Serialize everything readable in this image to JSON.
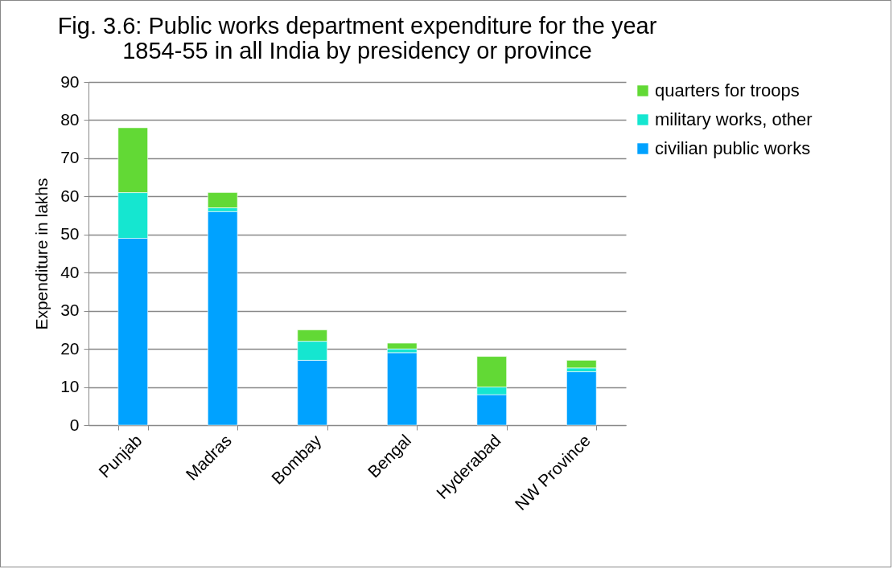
{
  "chart_data": {
    "type": "bar",
    "title": [
      "Fig. 3.6: Public works department expenditure for the year",
      "1854-55 in all India by presidency or province"
    ],
    "ylabel": "Expenditure in lakhs",
    "categories": [
      "Punjab",
      "Madras",
      "Bombay",
      "Bengal",
      "Hyderabad",
      "NW Province"
    ],
    "stacked": true,
    "series": [
      {
        "name": "civilian public works",
        "color": "#00a2ff",
        "values": [
          49,
          56,
          17,
          19,
          8,
          14
        ]
      },
      {
        "name": "military works, other",
        "color": "#15e6d0",
        "values": [
          12,
          1,
          5,
          1,
          2,
          1
        ]
      },
      {
        "name": "quarters for troops",
        "color": "#62d935",
        "values": [
          17,
          4,
          3,
          1.5,
          8,
          2
        ]
      }
    ],
    "ylim": [
      0,
      90
    ],
    "yticks": [
      0,
      10,
      20,
      30,
      40,
      50,
      60,
      70,
      80,
      90
    ],
    "grid": "y",
    "legend": "right"
  }
}
